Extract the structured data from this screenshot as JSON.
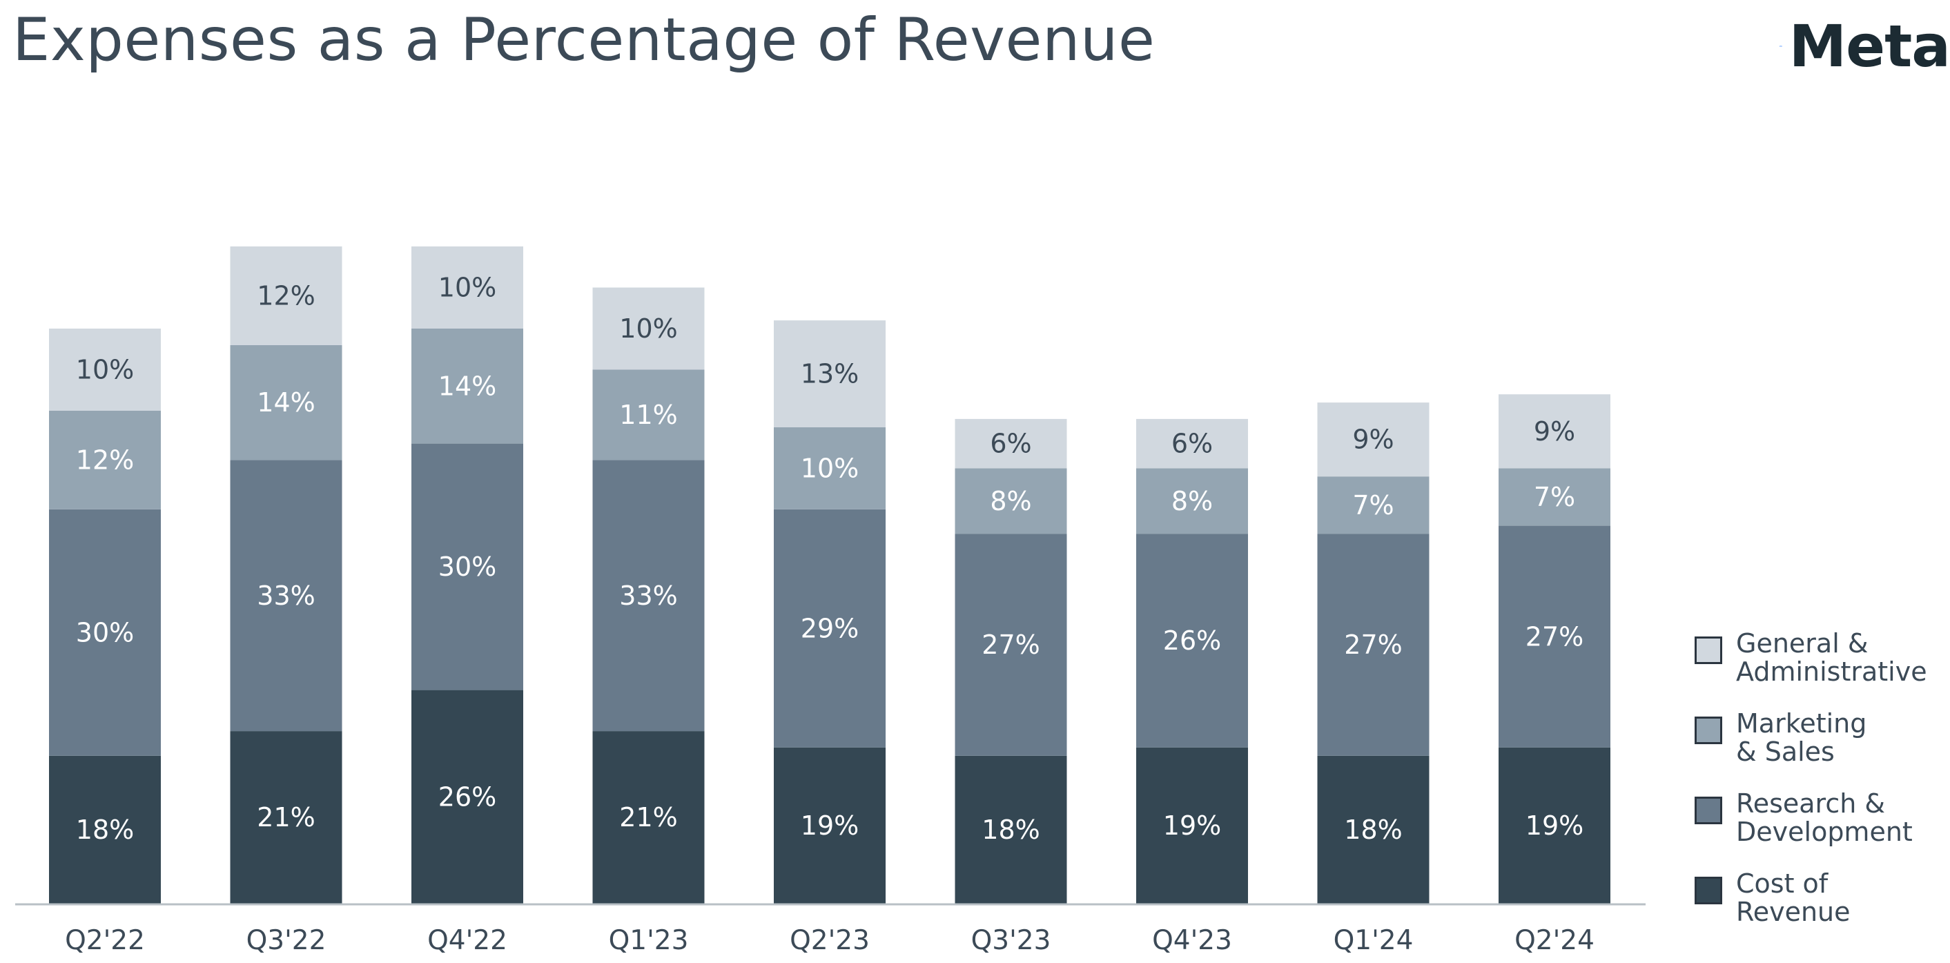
{
  "title": "Expenses as a Percentage of Revenue",
  "logo": {
    "icon": "meta-infinity-logo",
    "text": "Meta",
    "color": "#0866ff"
  },
  "legend": [
    {
      "label": "General &\nAdministrative",
      "color": "#d1d8df"
    },
    {
      "label": "Marketing\n& Sales",
      "color": "#94a5b2"
    },
    {
      "label": "Research &\nDevelopment",
      "color": "#687a8b"
    },
    {
      "label": "Cost of\nRevenue",
      "color": "#344753"
    }
  ],
  "chart_data": {
    "type": "bar",
    "stacked": true,
    "title": "Expenses as a Percentage of Revenue",
    "xlabel": "",
    "ylabel": "",
    "categories": [
      "Q2'22",
      "Q3'22",
      "Q4'22",
      "Q1'23",
      "Q2'23",
      "Q3'23",
      "Q4'23",
      "Q1'24",
      "Q2'24"
    ],
    "series": [
      {
        "name": "Cost of Revenue",
        "color": "#344753",
        "label_color": "#ffffff",
        "values": [
          18,
          21,
          26,
          21,
          19,
          18,
          19,
          18,
          19
        ]
      },
      {
        "name": "Research & Development",
        "color": "#687a8b",
        "label_color": "#ffffff",
        "values": [
          30,
          33,
          30,
          33,
          29,
          27,
          26,
          27,
          27
        ]
      },
      {
        "name": "Marketing & Sales",
        "color": "#94a5b2",
        "label_color": "#ffffff",
        "values": [
          12,
          14,
          14,
          11,
          10,
          8,
          8,
          7,
          7
        ]
      },
      {
        "name": "General & Administrative",
        "color": "#d1d8df",
        "label_color": "#3c4a57",
        "values": [
          10,
          12,
          10,
          10,
          13,
          6,
          6,
          9,
          9
        ]
      }
    ],
    "value_suffix": "%",
    "axis_color": "#b9c0c6",
    "tick_label_color": "#3c4a57"
  }
}
